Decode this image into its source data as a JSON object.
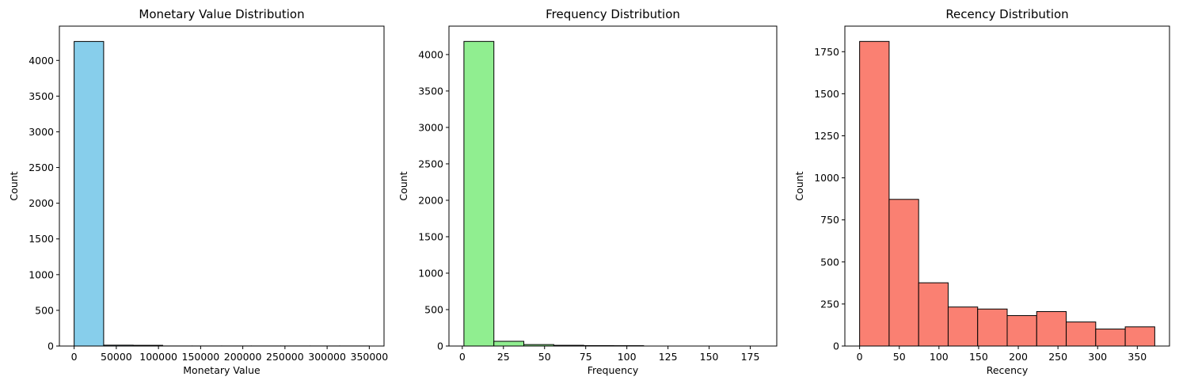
{
  "chart_data": [
    {
      "type": "bar",
      "title": "Monetary Value Distribution",
      "xlabel": "Monetary Value",
      "ylabel": "Count",
      "color": "#87ceeb",
      "edge_color": "#000000",
      "xlim": [
        -17500,
        367500
      ],
      "ylim": [
        0,
        4480
      ],
      "xticks": [
        0,
        50000,
        100000,
        150000,
        200000,
        250000,
        300000,
        350000
      ],
      "xtick_labels": [
        "0",
        "50000",
        "100000",
        "150000",
        "200000",
        "250000",
        "300000",
        "350000"
      ],
      "yticks": [
        0,
        500,
        1000,
        1500,
        2000,
        2500,
        3000,
        3500,
        4000
      ],
      "ytick_labels": [
        "0",
        "500",
        "1000",
        "1500",
        "2000",
        "2500",
        "3000",
        "3500",
        "4000"
      ],
      "bins": [
        {
          "x0": 0,
          "x1": 35000,
          "value": 4265
        },
        {
          "x0": 35000,
          "x1": 70000,
          "value": 12
        },
        {
          "x0": 70000,
          "x1": 105000,
          "value": 10
        },
        {
          "x0": 105000,
          "x1": 140000,
          "value": 1
        },
        {
          "x0": 140000,
          "x1": 175000,
          "value": 1
        },
        {
          "x0": 175000,
          "x1": 210000,
          "value": 1
        },
        {
          "x0": 210000,
          "x1": 245000,
          "value": 1
        },
        {
          "x0": 245000,
          "x1": 280000,
          "value": 1
        },
        {
          "x0": 280000,
          "x1": 315000,
          "value": 1
        },
        {
          "x0": 315000,
          "x1": 350000,
          "value": 1
        }
      ]
    },
    {
      "type": "bar",
      "title": "Frequency Distribution",
      "xlabel": "Frequency",
      "ylabel": "Count",
      "color": "#90ee90",
      "edge_color": "#000000",
      "xlim": [
        -8.1,
        191.1
      ],
      "ylim": [
        0,
        4390
      ],
      "xticks": [
        0,
        25,
        50,
        75,
        100,
        125,
        150,
        175
      ],
      "xtick_labels": [
        "0",
        "25",
        "50",
        "75",
        "100",
        "125",
        "150",
        "175"
      ],
      "yticks": [
        0,
        500,
        1000,
        1500,
        2000,
        2500,
        3000,
        3500,
        4000
      ],
      "ytick_labels": [
        "0",
        "500",
        "1000",
        "1500",
        "2000",
        "2500",
        "3000",
        "3500",
        "4000"
      ],
      "bins": [
        {
          "x0": 1,
          "x1": 19.2,
          "value": 4180
        },
        {
          "x0": 19.2,
          "x1": 37.4,
          "value": 65
        },
        {
          "x0": 37.4,
          "x1": 55.6,
          "value": 20
        },
        {
          "x0": 55.6,
          "x1": 73.8,
          "value": 10
        },
        {
          "x0": 73.8,
          "x1": 92,
          "value": 6
        },
        {
          "x0": 92,
          "x1": 110.2,
          "value": 5
        },
        {
          "x0": 110.2,
          "x1": 128.4,
          "value": 0
        },
        {
          "x0": 128.4,
          "x1": 146.6,
          "value": 0
        },
        {
          "x0": 146.6,
          "x1": 164.8,
          "value": 0
        },
        {
          "x0": 164.8,
          "x1": 183,
          "value": 0
        }
      ]
    },
    {
      "type": "bar",
      "title": "Recency Distribution",
      "xlabel": "Recency",
      "ylabel": "Count",
      "color": "#fa8072",
      "edge_color": "#000000",
      "xlim": [
        -18.6,
        390.6
      ],
      "ylim": [
        0,
        1902
      ],
      "xticks": [
        0,
        50,
        100,
        150,
        200,
        250,
        300,
        350
      ],
      "xtick_labels": [
        "0",
        "50",
        "100",
        "150",
        "200",
        "250",
        "300",
        "350"
      ],
      "yticks": [
        0,
        250,
        500,
        750,
        1000,
        1250,
        1500,
        1750
      ],
      "ytick_labels": [
        "0",
        "250",
        "500",
        "750",
        "1000",
        "1250",
        "1500",
        "1750"
      ],
      "bins": [
        {
          "x0": 0,
          "x1": 37.2,
          "value": 1811
        },
        {
          "x0": 37.2,
          "x1": 74.4,
          "value": 872
        },
        {
          "x0": 74.4,
          "x1": 111.6,
          "value": 376
        },
        {
          "x0": 111.6,
          "x1": 148.8,
          "value": 232
        },
        {
          "x0": 148.8,
          "x1": 186,
          "value": 220
        },
        {
          "x0": 186,
          "x1": 223.2,
          "value": 181
        },
        {
          "x0": 223.2,
          "x1": 260.4,
          "value": 205
        },
        {
          "x0": 260.4,
          "x1": 297.6,
          "value": 143
        },
        {
          "x0": 297.6,
          "x1": 334.8,
          "value": 101
        },
        {
          "x0": 334.8,
          "x1": 372,
          "value": 114
        }
      ]
    }
  ]
}
